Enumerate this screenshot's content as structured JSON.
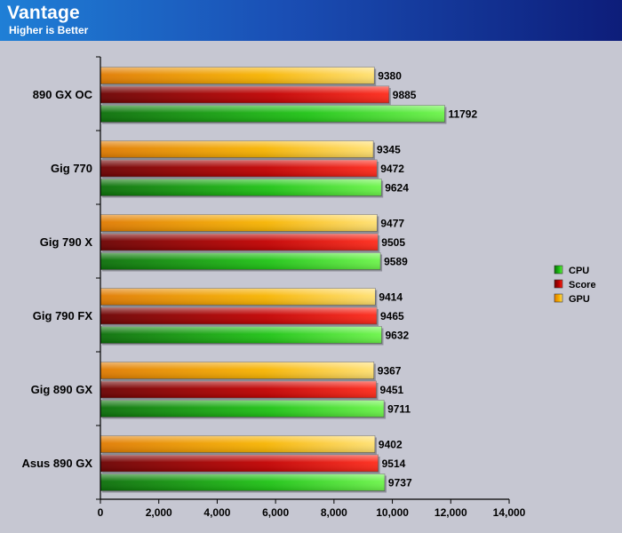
{
  "header": {
    "title": "Vantage",
    "subtitle": "Higher is Better"
  },
  "chart_data": {
    "type": "bar",
    "orientation": "horizontal",
    "title": "Vantage",
    "subtitle": "Higher is Better",
    "xlabel": "",
    "ylabel": "",
    "xlim": [
      0,
      14000
    ],
    "x_ticks": [
      "0",
      "2,000",
      "4,000",
      "6,000",
      "8,000",
      "10,000",
      "12,000",
      "14,000"
    ],
    "grid": false,
    "legend_position": "right",
    "categories": [
      "890 GX OC",
      "Gig 770",
      "Gig 790 X",
      "Gig 790 FX",
      "Gig 890 GX",
      "Asus 890 GX"
    ],
    "series": [
      {
        "name": "GPU",
        "color": "#f5a800",
        "values": [
          9380,
          9345,
          9477,
          9414,
          9367,
          9402
        ]
      },
      {
        "name": "Score",
        "color": "#cc0000",
        "values": [
          9885,
          9472,
          9505,
          9465,
          9451,
          9514
        ]
      },
      {
        "name": "CPU",
        "color": "#22c41a",
        "values": [
          11792,
          9624,
          9589,
          9632,
          9711,
          9737
        ]
      }
    ],
    "legend_order": [
      "CPU",
      "Score",
      "GPU"
    ]
  }
}
